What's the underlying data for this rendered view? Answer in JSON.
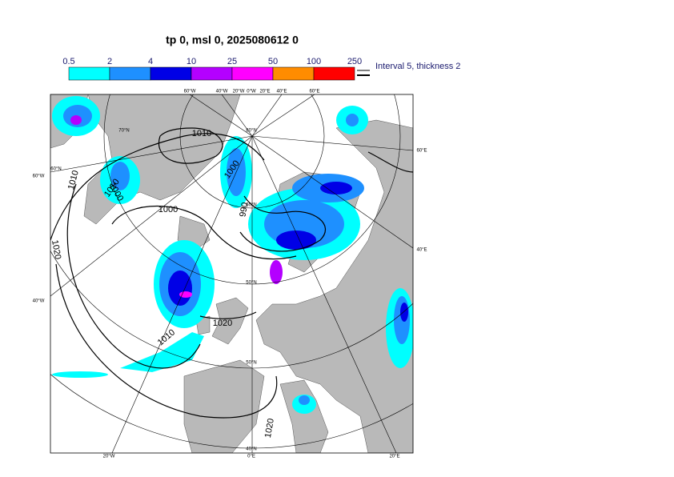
{
  "title": "tp 0, msl 0, 2025080612 0",
  "legend": {
    "bins": [
      0.5,
      2,
      4,
      10,
      25,
      50,
      100,
      250
    ],
    "colors": [
      "#00ffff",
      "#1e90ff",
      "#0000e6",
      "#b400ff",
      "#ff00ff",
      "#ff8c00",
      "#ff0000"
    ],
    "note": "Interval 5, thickness 2"
  },
  "contour_labels": [
    "1010",
    "1000",
    "1000",
    "1010",
    "1000",
    "990",
    "1020",
    "1010",
    "1020",
    "1010",
    "1020"
  ],
  "graticule_labels": [
    "60°W",
    "40°W",
    "20°W",
    "0°W",
    "20°E",
    "40°E",
    "60°E",
    "60°W",
    "40°W",
    "60°E",
    "40°E",
    "20°W",
    "0°E",
    "20°E",
    "70°N",
    "60°N",
    "80°N",
    "60°N",
    "50°N",
    "50°N",
    "40°N"
  ]
}
